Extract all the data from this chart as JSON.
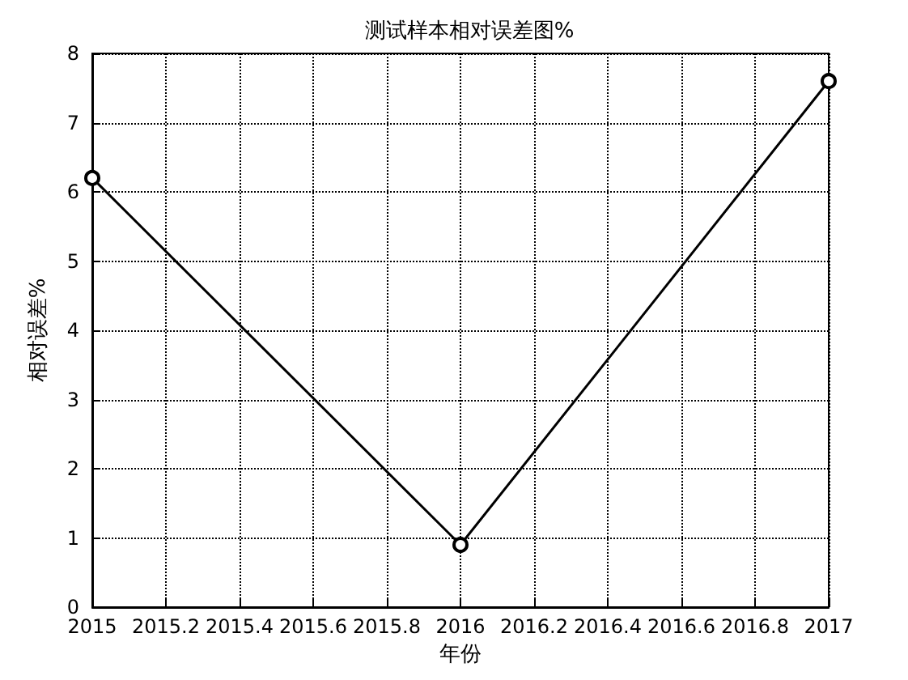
{
  "chart_data": {
    "type": "line",
    "title": "测试样本相对误差图%",
    "xlabel": "年份",
    "ylabel": "相对误差%",
    "x": [
      2015,
      2016,
      2017
    ],
    "series": [
      {
        "color": "#000000",
        "values": [
          6.2,
          0.9,
          7.6
        ]
      }
    ],
    "xlim": [
      2015,
      2017
    ],
    "xticks": [
      2015,
      2015.2,
      2015.4,
      2015.6,
      2015.8,
      2016,
      2016.2,
      2016.4,
      2016.6,
      2016.8,
      2017
    ],
    "ylim": [
      0,
      8
    ],
    "yticks": [
      0,
      1,
      2,
      3,
      4,
      5,
      6,
      7,
      8
    ],
    "grid": true,
    "marker": "circle",
    "line_style": "solid"
  }
}
